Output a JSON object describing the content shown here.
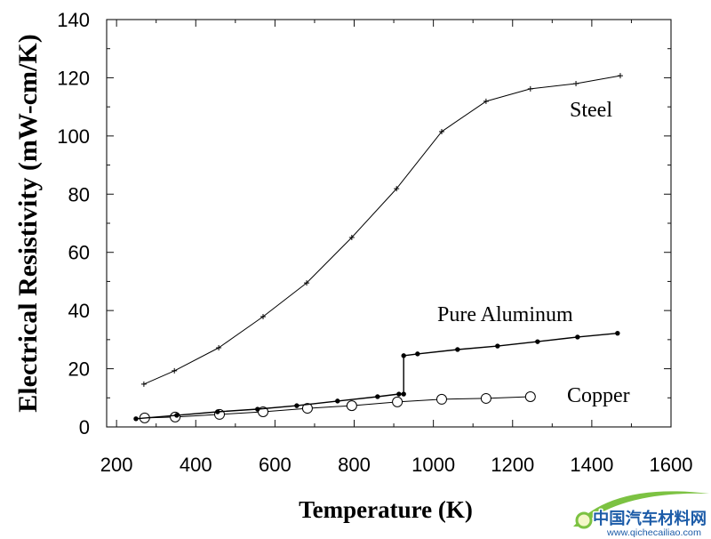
{
  "chart_data": {
    "type": "line",
    "xlabel": "Temperature (K)",
    "ylabel": "Electrical Resistivity (mW-cm/K)",
    "xlim": [
      175,
      1600
    ],
    "ylim": [
      0,
      140
    ],
    "xticks": [
      200,
      400,
      600,
      800,
      1000,
      1200,
      1400,
      1600
    ],
    "yticks": [
      0,
      20,
      40,
      60,
      80,
      100,
      120,
      140
    ],
    "grid": false,
    "legend": "inline",
    "series": [
      {
        "name": "Steel",
        "marker": "plus",
        "color": "#000000",
        "x": [
          269,
          346,
          458,
          570,
          680,
          794,
          907,
          1021,
          1133,
          1245,
          1360,
          1472
        ],
        "y": [
          14.7,
          19.3,
          27.2,
          37.9,
          49.5,
          65.1,
          81.9,
          101.5,
          111.9,
          116.2,
          118.0,
          120.7
        ]
      },
      {
        "name": "Pure Aluminum",
        "marker": "filled-circle",
        "color": "#000000",
        "x": [
          249,
          352,
          455,
          556,
          655,
          758,
          859,
          913,
          925,
          925,
          960,
          1061,
          1162,
          1263,
          1364,
          1465
        ],
        "y": [
          2.8,
          4.0,
          5.2,
          6.1,
          7.3,
          8.9,
          10.4,
          11.3,
          11.3,
          24.5,
          25.1,
          26.6,
          27.8,
          29.3,
          30.9,
          32.2
        ]
      },
      {
        "name": "Copper",
        "marker": "open-circle",
        "color": "#000000",
        "x": [
          271,
          348,
          460,
          570,
          682,
          794,
          909,
          1021,
          1133,
          1245
        ],
        "y": [
          3.1,
          3.4,
          4.3,
          5.2,
          6.4,
          7.3,
          8.6,
          9.5,
          9.8,
          10.4
        ]
      }
    ]
  },
  "watermark": {
    "name": "中国汽车材料网",
    "url": "www.qichecailiao.com",
    "text_color": "#1d5ca8",
    "swoosh_color": "#7cc242"
  }
}
